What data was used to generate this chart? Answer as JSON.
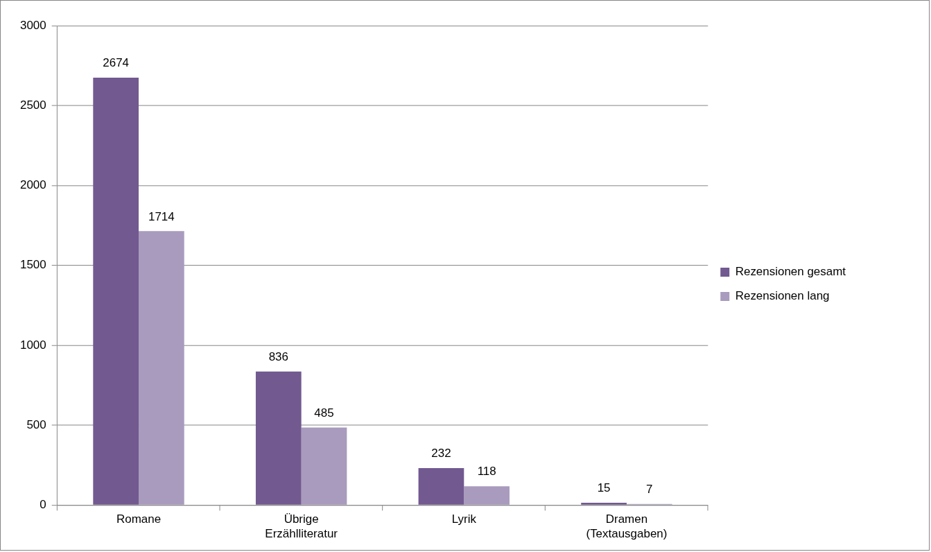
{
  "chart_data": {
    "type": "bar",
    "categories": [
      "Romane",
      "Übrige Erzählliteratur",
      "Lyrik",
      "Dramen (Textausgaben)"
    ],
    "series": [
      {
        "name": "Rezensionen gesamt",
        "color": "#725990",
        "values": [
          2674,
          836,
          232,
          15
        ]
      },
      {
        "name": "Rezensionen lang",
        "color": "#a99bbd",
        "values": [
          1714,
          485,
          118,
          7
        ]
      }
    ],
    "ylim": [
      0,
      3000
    ],
    "yticks": [
      0,
      500,
      1000,
      1500,
      2000,
      2500,
      3000
    ],
    "grid": "y",
    "legend": "right",
    "data_labels": true
  }
}
